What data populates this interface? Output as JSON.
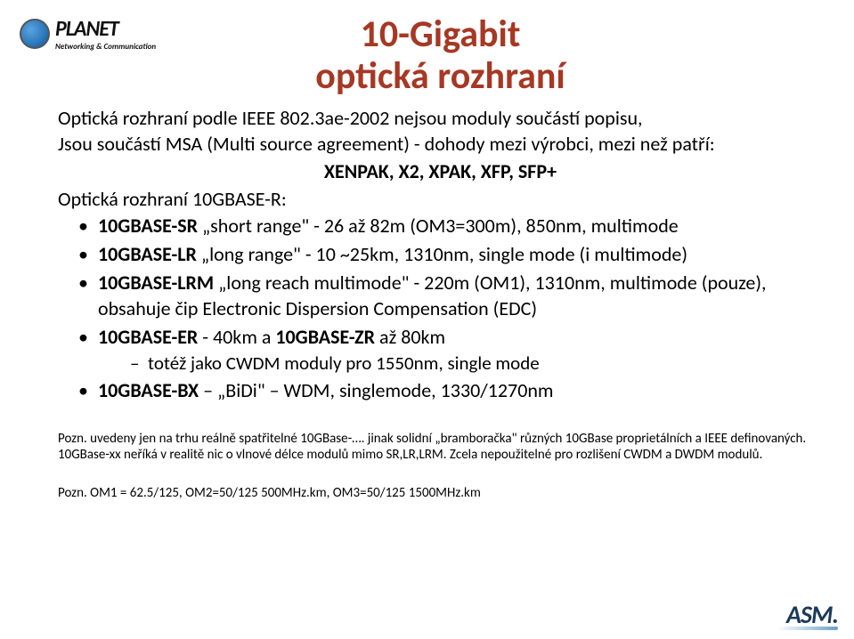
{
  "logo_top": {
    "name": "PLANET",
    "tagline": "Networking & Communication"
  },
  "title_line1": "10-Gigabit",
  "title_line2": "optická rozhraní",
  "intro_l1": "Optická rozhraní podle IEEE 802.3ae-2002 nejsou moduly součástí popisu,",
  "intro_l2": "Jsou součástí MSA (Multi source agreement) - dohody mezi výrobci, mezi než patří:",
  "center_line": "XENPAK, X2, XPAK, XFP, SFP+",
  "sub_heading": "Optická rozhraní 10GBASE-R:",
  "bullets": [
    {
      "bold": "10GBASE-SR",
      "rest": " „short range\" - 26 až 82m (OM3=300m), 850nm, multimode"
    },
    {
      "bold": "10GBASE-LR",
      "rest": " „long range\" - 10 ~25km, 1310nm, single mode (i multimode)"
    },
    {
      "bold": "10GBASE-LRM",
      "rest": " „long reach multimode\" - 220m (OM1), 1310nm, multimode (pouze), obsahuje čip Electronic Dispersion Compensation (EDC)"
    },
    {
      "bold": "10GBASE-ER",
      "rest_a": " - 40km a ",
      "bold_b": "10GBASE-ZR",
      "rest_b": " až 80km",
      "dash": "totéž jako CWDM moduly pro 1550nm, single mode"
    },
    {
      "bold": "10GBASE-BX",
      "rest": " – „BiDi\" – WDM, singlemode,  1330/1270nm"
    }
  ],
  "footnote1": "Pozn. uvedeny jen na trhu reálně spatřitelné 10GBase-…. jinak solidní „bramboračka\" různých 10GBase proprietálních a IEEE definovaných. 10GBase-xx neříká v realitě nic o vlnové délce modulů mimo SR,LR,LRM. Zcela nepoužitelné pro rozlišení CWDM a DWDM modulů.",
  "footnote2": "Pozn. OM1 = 62.5/125, OM2=50/125 500MHz.km, OM3=50/125 1500MHz.km",
  "logo_bottom": "ASM"
}
